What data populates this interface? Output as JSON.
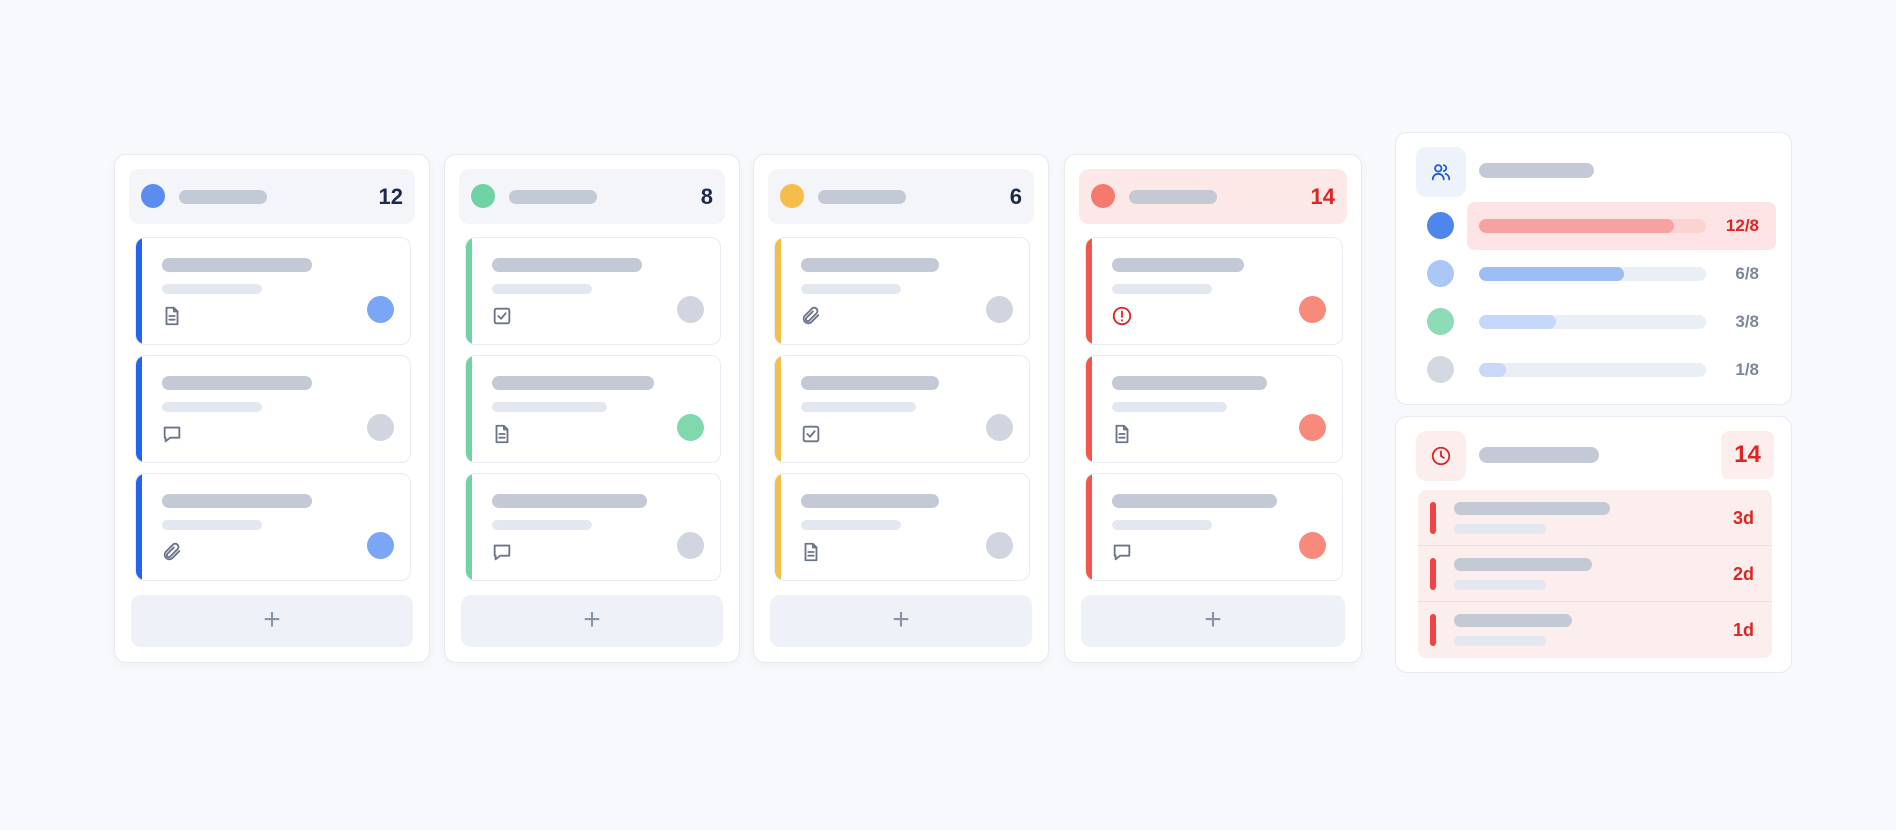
{
  "columns": [
    {
      "count": "12"
    },
    {
      "count": "8"
    },
    {
      "count": "6"
    },
    {
      "count": "14"
    }
  ],
  "workload": {
    "rows": [
      {
        "label": "12/8"
      },
      {
        "label": "6/8"
      },
      {
        "label": "3/8"
      },
      {
        "label": "1/8"
      }
    ]
  },
  "overdue": {
    "count": "14",
    "items": [
      {
        "due": "3d"
      },
      {
        "due": "2d"
      },
      {
        "due": "1d"
      }
    ]
  }
}
